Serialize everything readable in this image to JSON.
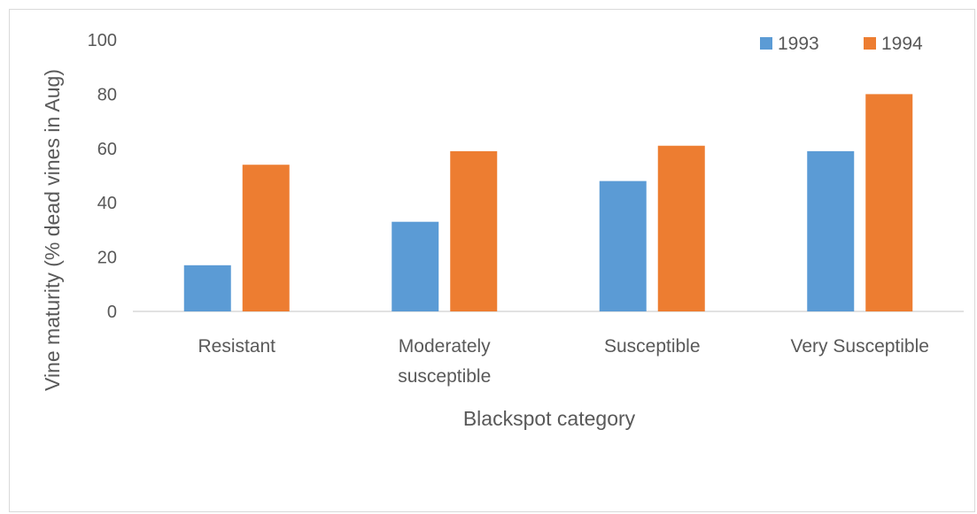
{
  "chart_data": {
    "type": "bar",
    "title": "",
    "xlabel": "Blackspot category",
    "ylabel": "Vine maturity (% dead vines in Aug)",
    "categories": [
      [
        "Resistant"
      ],
      [
        "Moderately",
        "susceptible"
      ],
      [
        "Susceptible"
      ],
      [
        "Very Susceptible"
      ]
    ],
    "series": [
      {
        "name": "1993",
        "color": "#5b9bd5",
        "values": [
          17,
          33,
          48,
          59
        ]
      },
      {
        "name": "1994",
        "color": "#ed7d31",
        "values": [
          54,
          59,
          61,
          80
        ]
      }
    ],
    "yticks": [
      "0",
      "20",
      "40",
      "60",
      "80",
      "100"
    ],
    "ylim": [
      0,
      100
    ],
    "grid": false,
    "legend": "top-right"
  }
}
